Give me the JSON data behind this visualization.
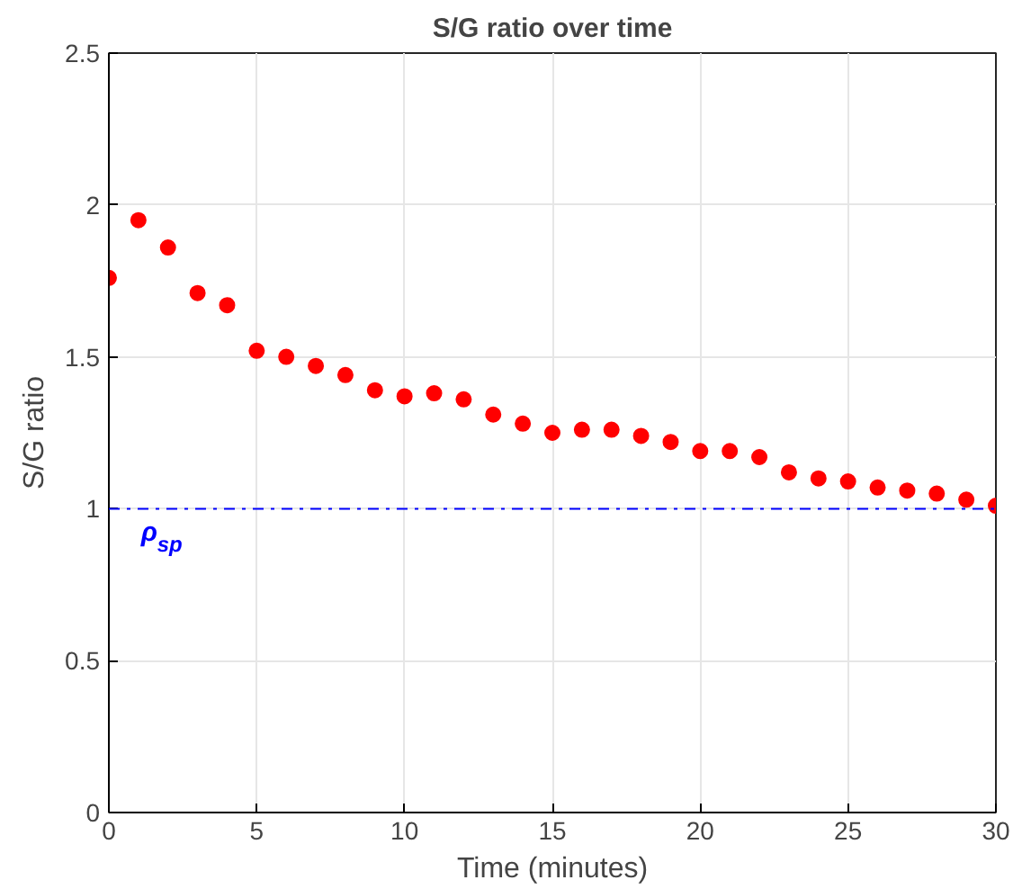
{
  "chart_data": {
    "type": "scatter",
    "title": "S/G ratio over time",
    "xlabel": "Time (minutes)",
    "ylabel": "S/G ratio",
    "x": [
      0,
      1,
      2,
      3,
      4,
      5,
      6,
      7,
      8,
      9,
      10,
      11,
      12,
      13,
      14,
      15,
      16,
      17,
      18,
      19,
      20,
      21,
      22,
      23,
      24,
      25,
      26,
      27,
      28,
      29,
      30
    ],
    "series": [
      {
        "color": "#ff0000",
        "values": [
          1.76,
          1.95,
          1.86,
          1.71,
          1.67,
          1.52,
          1.5,
          1.47,
          1.44,
          1.39,
          1.37,
          1.38,
          1.36,
          1.31,
          1.28,
          1.25,
          1.26,
          1.26,
          1.24,
          1.22,
          1.19,
          1.19,
          1.17,
          1.12,
          1.1,
          1.09,
          1.07,
          1.06,
          1.05,
          1.03,
          1.01
        ]
      }
    ],
    "xlim": [
      0,
      30
    ],
    "ylim": [
      0,
      2.5
    ],
    "xticks": [
      0,
      5,
      10,
      15,
      20,
      25,
      30
    ],
    "yticks": [
      0,
      0.5,
      1,
      1.5,
      2,
      2.5
    ],
    "ref_lines": [
      {
        "axis": "y",
        "value": 1,
        "label": "ρ$_{sp}$",
        "color": "#0000ff",
        "line_style": "dashdot"
      }
    ],
    "grid": true,
    "marker": "circle"
  }
}
